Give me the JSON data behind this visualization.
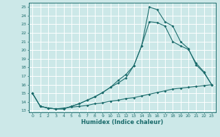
{
  "bg_color": "#cce8e8",
  "line_color": "#1a6b6b",
  "grid_color": "#ffffff",
  "xlabel": "Humidex (Indice chaleur)",
  "xlim": [
    -0.5,
    23.5
  ],
  "ylim": [
    12.8,
    25.5
  ],
  "yticks": [
    13,
    14,
    15,
    16,
    17,
    18,
    19,
    20,
    21,
    22,
    23,
    24,
    25
  ],
  "xticks": [
    0,
    1,
    2,
    3,
    4,
    5,
    6,
    7,
    8,
    9,
    10,
    11,
    12,
    13,
    14,
    15,
    16,
    17,
    18,
    19,
    20,
    21,
    22,
    23
  ],
  "line1_x": [
    0,
    1,
    2,
    3,
    4,
    5,
    6,
    7,
    8,
    9,
    10,
    11,
    12,
    13,
    14,
    15,
    16,
    17,
    18,
    19,
    20,
    21,
    22,
    23
  ],
  "line1_y": [
    15.0,
    13.5,
    13.3,
    13.2,
    13.2,
    13.5,
    13.8,
    14.2,
    14.6,
    15.1,
    15.7,
    16.5,
    17.2,
    18.2,
    20.5,
    25.0,
    24.7,
    23.3,
    22.8,
    21.0,
    20.2,
    18.3,
    17.4,
    16.0
  ],
  "line2_x": [
    0,
    1,
    2,
    3,
    4,
    5,
    6,
    7,
    8,
    9,
    10,
    11,
    12,
    13,
    14,
    15,
    16,
    17,
    18,
    19,
    20,
    21,
    22,
    23
  ],
  "line2_y": [
    15.0,
    13.5,
    13.3,
    13.2,
    13.2,
    13.5,
    13.8,
    14.2,
    14.6,
    15.1,
    15.7,
    16.2,
    16.8,
    18.2,
    20.5,
    23.3,
    23.2,
    22.8,
    21.0,
    20.5,
    20.1,
    18.5,
    17.5,
    16.0
  ],
  "line3_x": [
    0,
    1,
    2,
    3,
    4,
    5,
    6,
    7,
    8,
    9,
    10,
    11,
    12,
    13,
    14,
    15,
    16,
    17,
    18,
    19,
    20,
    21,
    22,
    23
  ],
  "line3_y": [
    15.0,
    13.5,
    13.3,
    13.2,
    13.3,
    13.4,
    13.5,
    13.6,
    13.8,
    13.9,
    14.1,
    14.2,
    14.4,
    14.5,
    14.7,
    14.9,
    15.1,
    15.3,
    15.5,
    15.6,
    15.7,
    15.8,
    15.9,
    16.0
  ]
}
